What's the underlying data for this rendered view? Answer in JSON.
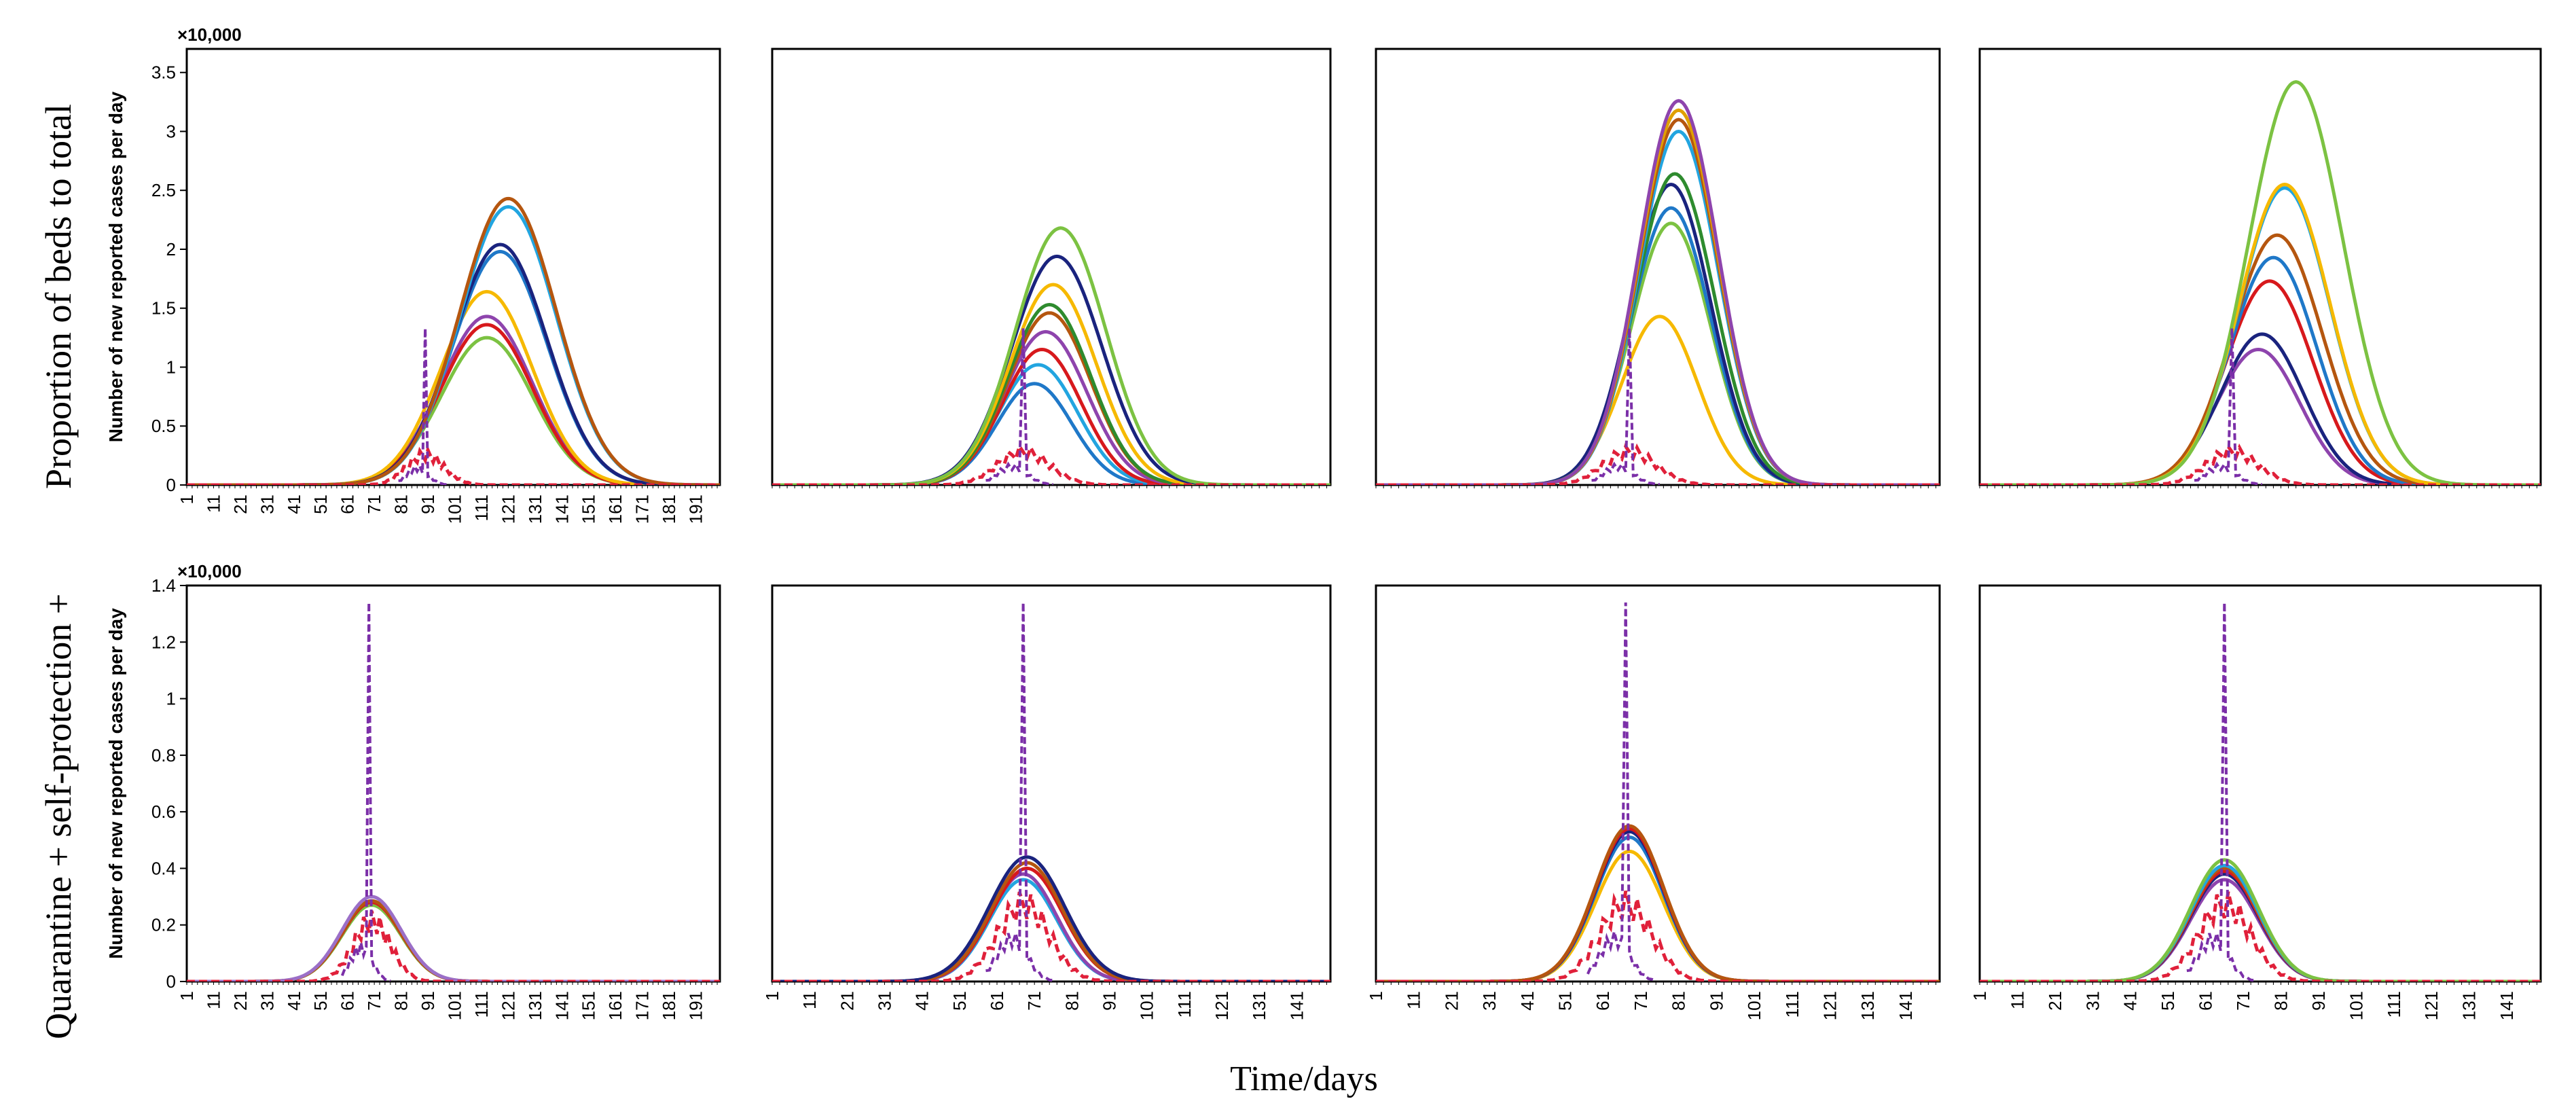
{
  "figure": {
    "xlabel": "Time/days",
    "row_labels": [
      "Proportion of beds to total",
      "Quarantine + self-protection +"
    ]
  },
  "chart_data": [
    {
      "type": "line",
      "row": 0,
      "col": 0,
      "ylabel": "Number of new reported cases per day",
      "multiplier": "×10,000",
      "ylim": [
        0,
        3.7
      ],
      "yticks": [
        "0",
        "0.5",
        "1",
        "1.5",
        "2",
        "2.5",
        "3",
        "3.5"
      ],
      "ytick_values": [
        0,
        0.5,
        1,
        1.5,
        2,
        2.5,
        3,
        3.5
      ],
      "xlim": [
        1,
        200
      ],
      "xticks": [
        "1",
        "11",
        "21",
        "31",
        "41",
        "51",
        "61",
        "71",
        "81",
        "91",
        "101",
        "111",
        "121",
        "131",
        "141",
        "151",
        "161",
        "171",
        "181",
        "191"
      ],
      "series": [
        {
          "name": "green",
          "color": "#7cc242",
          "peak_day": 113,
          "peak": 1.25,
          "width": 17
        },
        {
          "name": "purple",
          "color": "#8e44ad",
          "peak_day": 113,
          "peak": 1.43,
          "width": 17
        },
        {
          "name": "red",
          "color": "#d7191c",
          "peak_day": 113,
          "peak": 1.36,
          "width": 17
        },
        {
          "name": "yellow",
          "color": "#f6b900",
          "peak_day": 113,
          "peak": 1.64,
          "width": 17
        },
        {
          "name": "blue",
          "color": "#1f78c8",
          "peak_day": 118,
          "peak": 1.98,
          "width": 17.5
        },
        {
          "name": "navy",
          "color": "#1a237e",
          "peak_day": 118,
          "peak": 2.04,
          "width": 17.5
        },
        {
          "name": "light-blue",
          "color": "#22a5e0",
          "peak_day": 121,
          "peak": 2.36,
          "width": 18
        },
        {
          "name": "brown",
          "color": "#b5560f",
          "peak_day": 121,
          "peak": 2.43,
          "width": 18
        }
      ],
      "observed": {
        "color": "#e0203a",
        "peak": 0.3,
        "peak_day": 90
      },
      "spike": {
        "color": "#7b2fa8",
        "day": 90,
        "value": 1.33
      }
    },
    {
      "type": "line",
      "row": 0,
      "col": 1,
      "ylim": [
        0,
        3.7
      ],
      "xlim": [
        1,
        150
      ],
      "xticks": [],
      "series": [
        {
          "name": "blue",
          "color": "#1f78c8",
          "peak_day": 71,
          "peak": 0.86,
          "width": 10
        },
        {
          "name": "light-blue",
          "color": "#22a5e0",
          "peak_day": 72,
          "peak": 1.02,
          "width": 10.5
        },
        {
          "name": "red",
          "color": "#d7191c",
          "peak_day": 73,
          "peak": 1.15,
          "width": 10.5
        },
        {
          "name": "purple",
          "color": "#8e44ad",
          "peak_day": 74,
          "peak": 1.3,
          "width": 11
        },
        {
          "name": "brown",
          "color": "#b5560f",
          "peak_day": 75,
          "peak": 1.46,
          "width": 11
        },
        {
          "name": "green-dark",
          "color": "#2e8b2e",
          "peak_day": 75,
          "peak": 1.53,
          "width": 11
        },
        {
          "name": "yellow",
          "color": "#f6b900",
          "peak_day": 76,
          "peak": 1.7,
          "width": 11.5
        },
        {
          "name": "navy",
          "color": "#1a237e",
          "peak_day": 77,
          "peak": 1.94,
          "width": 12
        },
        {
          "name": "green",
          "color": "#7cc242",
          "peak_day": 78,
          "peak": 2.18,
          "width": 12
        }
      ],
      "observed": {
        "color": "#e0203a",
        "peak": 0.33,
        "peak_day": 68
      },
      "spike": {
        "color": "#7b2fa8",
        "day": 68,
        "value": 1.33
      }
    },
    {
      "type": "line",
      "row": 0,
      "col": 2,
      "ylim": [
        0,
        3.7
      ],
      "xlim": [
        1,
        150
      ],
      "xticks": [],
      "series": [
        {
          "name": "yellow",
          "color": "#f6b900",
          "peak_day": 76,
          "peak": 1.43,
          "width": 10
        },
        {
          "name": "green",
          "color": "#7cc242",
          "peak_day": 79,
          "peak": 2.22,
          "width": 10.5
        },
        {
          "name": "blue",
          "color": "#1f78c8",
          "peak_day": 79,
          "peak": 2.35,
          "width": 10.5
        },
        {
          "name": "navy",
          "color": "#1a237e",
          "peak_day": 79,
          "peak": 2.55,
          "width": 10.5
        },
        {
          "name": "green-dark",
          "color": "#2e8b2e",
          "peak_day": 80,
          "peak": 2.64,
          "width": 10.5
        },
        {
          "name": "light-blue",
          "color": "#22a5e0",
          "peak_day": 81,
          "peak": 3.0,
          "width": 10.5
        },
        {
          "name": "brown",
          "color": "#b5560f",
          "peak_day": 81,
          "peak": 3.1,
          "width": 10.5
        },
        {
          "name": "yellow-2",
          "color": "#e0a000",
          "peak_day": 81,
          "peak": 3.18,
          "width": 10.5
        },
        {
          "name": "purple",
          "color": "#8e44ad",
          "peak_day": 81,
          "peak": 3.26,
          "width": 10.5
        }
      ],
      "observed": {
        "color": "#e0203a",
        "peak": 0.33,
        "peak_day": 68
      },
      "spike": {
        "color": "#7b2fa8",
        "day": 68,
        "value": 1.33
      }
    },
    {
      "type": "line",
      "row": 0,
      "col": 3,
      "ylim": [
        0,
        3.7
      ],
      "xlim": [
        1,
        150
      ],
      "xticks": [],
      "series": [
        {
          "name": "purple",
          "color": "#8e44ad",
          "peak_day": 75,
          "peak": 1.15,
          "width": 11
        },
        {
          "name": "navy",
          "color": "#1a237e",
          "peak_day": 76,
          "peak": 1.28,
          "width": 11
        },
        {
          "name": "red",
          "color": "#d7191c",
          "peak_day": 78,
          "peak": 1.73,
          "width": 11.5
        },
        {
          "name": "blue",
          "color": "#1f78c8",
          "peak_day": 79,
          "peak": 1.93,
          "width": 11.5
        },
        {
          "name": "brown",
          "color": "#b5560f",
          "peak_day": 80,
          "peak": 2.12,
          "width": 12
        },
        {
          "name": "light-blue",
          "color": "#22a5e0",
          "peak_day": 82,
          "peak": 2.52,
          "width": 12
        },
        {
          "name": "yellow",
          "color": "#f6b900",
          "peak_day": 82,
          "peak": 2.55,
          "width": 12
        },
        {
          "name": "green",
          "color": "#7cc242",
          "peak_day": 85,
          "peak": 3.42,
          "width": 12.5
        }
      ],
      "observed": {
        "color": "#e0203a",
        "peak": 0.33,
        "peak_day": 68
      },
      "spike": {
        "color": "#7b2fa8",
        "day": 68,
        "value": 1.33
      }
    },
    {
      "type": "line",
      "row": 1,
      "col": 0,
      "ylabel": "Number of new reported cases per day",
      "multiplier": "×10,000",
      "ylim": [
        0,
        1.4
      ],
      "yticks": [
        "0",
        "0.2",
        "0.4",
        "0.6",
        "0.8",
        "1",
        "1.2",
        "1.4"
      ],
      "ytick_values": [
        0,
        0.2,
        0.4,
        0.6,
        0.8,
        1,
        1.2,
        1.4
      ],
      "xlim": [
        1,
        200
      ],
      "xticks": [
        "1",
        "11",
        "21",
        "31",
        "41",
        "51",
        "61",
        "71",
        "81",
        "91",
        "101",
        "111",
        "121",
        "131",
        "141",
        "151",
        "161",
        "171",
        "181",
        "191"
      ],
      "series": [
        {
          "name": "green",
          "color": "#7cc242",
          "peak_day": 70,
          "peak": 0.27,
          "width": 11
        },
        {
          "name": "red",
          "color": "#d7191c",
          "peak_day": 70,
          "peak": 0.28,
          "width": 11
        },
        {
          "name": "brown",
          "color": "#b5560f",
          "peak_day": 70,
          "peak": 0.285,
          "width": 11
        },
        {
          "name": "violet",
          "color": "#9b6fc8",
          "peak_day": 70,
          "peak": 0.3,
          "width": 11
        }
      ],
      "observed": {
        "color": "#e0203a",
        "peak": 0.25,
        "peak_day": 70
      },
      "spike": {
        "color": "#7b2fa8",
        "day": 69,
        "value": 1.34
      }
    },
    {
      "type": "line",
      "row": 1,
      "col": 1,
      "ylim": [
        0,
        1.4
      ],
      "xlim": [
        1,
        150
      ],
      "xticks": [
        "1",
        "11",
        "21",
        "31",
        "41",
        "51",
        "61",
        "71",
        "81",
        "91",
        "101",
        "111",
        "121",
        "131",
        "141"
      ],
      "series": [
        {
          "name": "light-blue",
          "color": "#22a5e0",
          "peak_day": 68,
          "peak": 0.36,
          "width": 9
        },
        {
          "name": "purple",
          "color": "#8e44ad",
          "peak_day": 68,
          "peak": 0.38,
          "width": 9
        },
        {
          "name": "red",
          "color": "#d7191c",
          "peak_day": 69,
          "peak": 0.4,
          "width": 9.5
        },
        {
          "name": "brown",
          "color": "#b5560f",
          "peak_day": 69,
          "peak": 0.42,
          "width": 9.5
        },
        {
          "name": "navy",
          "color": "#1a237e",
          "peak_day": 69,
          "peak": 0.44,
          "width": 10
        }
      ],
      "observed": {
        "color": "#e0203a",
        "peak": 0.32,
        "peak_day": 68
      },
      "spike": {
        "color": "#7b2fa8",
        "day": 68,
        "value": 1.34
      }
    },
    {
      "type": "line",
      "row": 1,
      "col": 2,
      "ylim": [
        0,
        1.4
      ],
      "xlim": [
        1,
        150
      ],
      "xticks": [
        "1",
        "11",
        "21",
        "31",
        "41",
        "51",
        "61",
        "71",
        "81",
        "91",
        "101",
        "111",
        "121",
        "131",
        "141"
      ],
      "series": [
        {
          "name": "yellow",
          "color": "#f6b900",
          "peak_day": 68,
          "peak": 0.46,
          "width": 9
        },
        {
          "name": "blue",
          "color": "#1f78c8",
          "peak_day": 68,
          "peak": 0.51,
          "width": 9
        },
        {
          "name": "navy",
          "color": "#1a237e",
          "peak_day": 68,
          "peak": 0.53,
          "width": 9
        },
        {
          "name": "red",
          "color": "#d7191c",
          "peak_day": 68,
          "peak": 0.54,
          "width": 9
        },
        {
          "name": "brown",
          "color": "#b5560f",
          "peak_day": 68,
          "peak": 0.55,
          "width": 9
        }
      ],
      "observed": {
        "color": "#e0203a",
        "peak": 0.32,
        "peak_day": 67
      },
      "spike": {
        "color": "#7b2fa8",
        "day": 67,
        "value": 1.34
      }
    },
    {
      "type": "line",
      "row": 1,
      "col": 3,
      "ylim": [
        0,
        1.4
      ],
      "xlim": [
        1,
        150
      ],
      "xticks": [
        "1",
        "11",
        "21",
        "31",
        "41",
        "51",
        "61",
        "71",
        "81",
        "91",
        "101",
        "111",
        "121",
        "131",
        "141"
      ],
      "series": [
        {
          "name": "purple",
          "color": "#8e44ad",
          "peak_day": 66,
          "peak": 0.36,
          "width": 9
        },
        {
          "name": "navy",
          "color": "#1a237e",
          "peak_day": 66,
          "peak": 0.38,
          "width": 9
        },
        {
          "name": "red",
          "color": "#d7191c",
          "peak_day": 66,
          "peak": 0.39,
          "width": 9
        },
        {
          "name": "brown",
          "color": "#b5560f",
          "peak_day": 66,
          "peak": 0.4,
          "width": 9
        },
        {
          "name": "light-blue",
          "color": "#22a5e0",
          "peak_day": 66,
          "peak": 0.41,
          "width": 9
        },
        {
          "name": "green",
          "color": "#7cc242",
          "peak_day": 66,
          "peak": 0.43,
          "width": 9
        }
      ],
      "observed": {
        "color": "#e0203a",
        "peak": 0.32,
        "peak_day": 66
      },
      "spike": {
        "color": "#7b2fa8",
        "day": 66,
        "value": 1.34
      }
    }
  ]
}
